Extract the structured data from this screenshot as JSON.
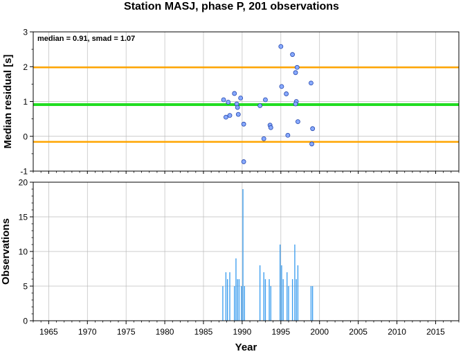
{
  "title": "Station MASJ, phase P, 201 observations",
  "chart_data": [
    {
      "type": "scatter",
      "ylabel": "Median residual [s]",
      "annotation": "median = 0.91, smad = 1.07",
      "xlim": [
        1963,
        2018
      ],
      "ylim": [
        -1,
        3
      ],
      "yticks": [
        -1,
        0,
        1,
        2,
        3
      ],
      "grid": true,
      "median": 0.91,
      "lower_band": -0.16,
      "upper_band": 1.98,
      "colors": {
        "median": "#22dd22",
        "band": "#ffa500",
        "point": "#88aaff",
        "grid": "#bbbbbb"
      },
      "points": [
        {
          "x": 1987.6,
          "y": 1.05
        },
        {
          "x": 1987.9,
          "y": 0.55
        },
        {
          "x": 1988.2,
          "y": 0.98
        },
        {
          "x": 1988.4,
          "y": 0.6
        },
        {
          "x": 1989.0,
          "y": 1.23
        },
        {
          "x": 1989.3,
          "y": 0.93
        },
        {
          "x": 1989.4,
          "y": 0.83
        },
        {
          "x": 1989.5,
          "y": 0.63
        },
        {
          "x": 1989.8,
          "y": 1.1
        },
        {
          "x": 1990.2,
          "y": 0.35
        },
        {
          "x": 1990.2,
          "y": -0.73
        },
        {
          "x": 1992.3,
          "y": 0.88
        },
        {
          "x": 1992.8,
          "y": -0.07
        },
        {
          "x": 1993.0,
          "y": 1.05
        },
        {
          "x": 1993.6,
          "y": 0.32
        },
        {
          "x": 1993.7,
          "y": 0.25
        },
        {
          "x": 1995.0,
          "y": 2.58
        },
        {
          "x": 1995.1,
          "y": 1.43
        },
        {
          "x": 1995.7,
          "y": 1.22
        },
        {
          "x": 1995.9,
          "y": 0.03
        },
        {
          "x": 1996.5,
          "y": 2.35
        },
        {
          "x": 1996.9,
          "y": 1.83
        },
        {
          "x": 1997.1,
          "y": 1.98
        },
        {
          "x": 1997.0,
          "y": 1.0
        },
        {
          "x": 1996.9,
          "y": 0.93
        },
        {
          "x": 1997.2,
          "y": 0.42
        },
        {
          "x": 1998.9,
          "y": 1.53
        },
        {
          "x": 1999.1,
          "y": 0.22
        },
        {
          "x": 1999.0,
          "y": -0.22
        }
      ]
    },
    {
      "type": "bar",
      "ylabel": "Observations",
      "xlabel": "Year",
      "xlim": [
        1963,
        2018
      ],
      "ylim": [
        0,
        20
      ],
      "yticks": [
        0,
        5,
        10,
        15,
        20
      ],
      "xticks": [
        1965,
        1970,
        1975,
        1980,
        1985,
        1990,
        1995,
        2000,
        2005,
        2010,
        2015
      ],
      "grid": true,
      "colors": {
        "bar": "#3399ee",
        "grid": "#bbbbbb"
      },
      "bars": [
        {
          "x": 1987.5,
          "y": 5
        },
        {
          "x": 1987.9,
          "y": 7
        },
        {
          "x": 1988.1,
          "y": 6
        },
        {
          "x": 1988.4,
          "y": 7
        },
        {
          "x": 1989.0,
          "y": 5
        },
        {
          "x": 1989.2,
          "y": 9
        },
        {
          "x": 1989.4,
          "y": 6
        },
        {
          "x": 1989.6,
          "y": 6
        },
        {
          "x": 1989.9,
          "y": 5
        },
        {
          "x": 1990.1,
          "y": 19
        },
        {
          "x": 1990.3,
          "y": 5
        },
        {
          "x": 1992.3,
          "y": 8
        },
        {
          "x": 1992.8,
          "y": 7
        },
        {
          "x": 1993.0,
          "y": 6
        },
        {
          "x": 1993.5,
          "y": 6
        },
        {
          "x": 1993.7,
          "y": 5
        },
        {
          "x": 1994.9,
          "y": 11
        },
        {
          "x": 1995.1,
          "y": 8
        },
        {
          "x": 1995.3,
          "y": 6
        },
        {
          "x": 1995.8,
          "y": 7
        },
        {
          "x": 1996.0,
          "y": 5
        },
        {
          "x": 1996.5,
          "y": 6
        },
        {
          "x": 1996.8,
          "y": 11
        },
        {
          "x": 1997.0,
          "y": 6
        },
        {
          "x": 1997.2,
          "y": 8
        },
        {
          "x": 1998.9,
          "y": 5
        },
        {
          "x": 1999.1,
          "y": 5
        }
      ]
    }
  ]
}
